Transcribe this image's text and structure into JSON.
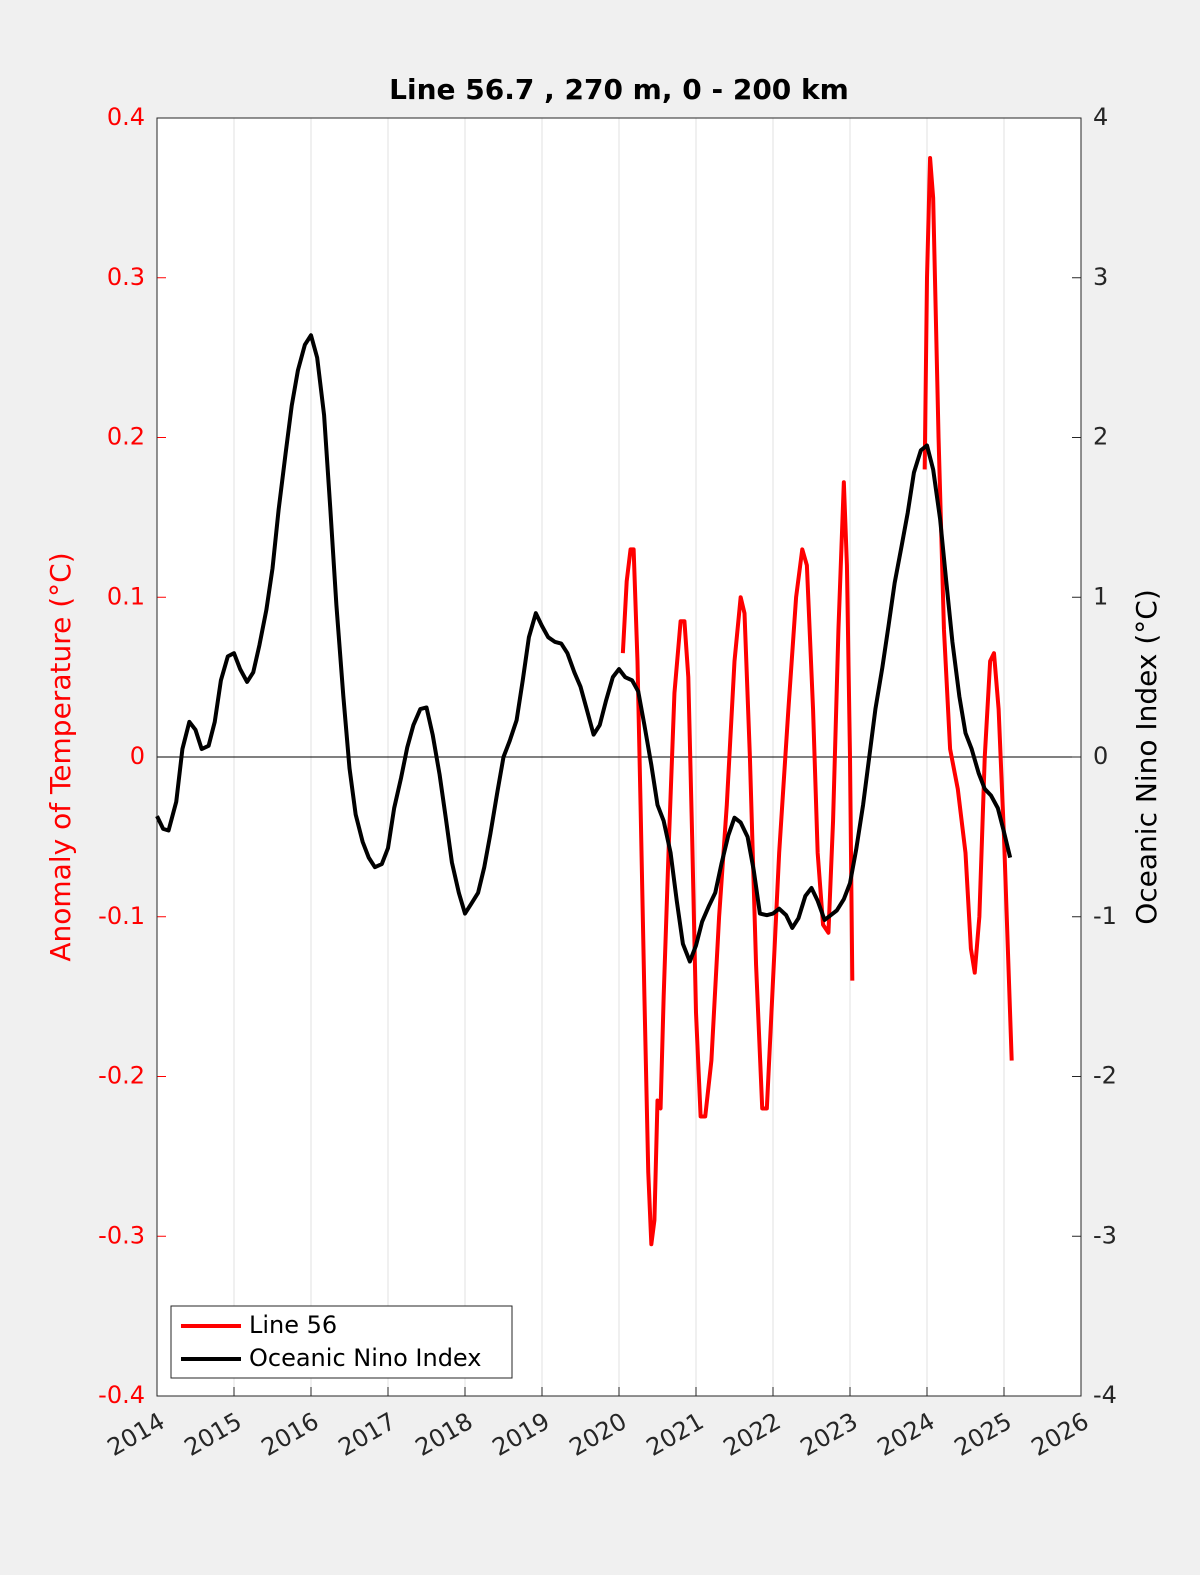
{
  "chart_data": {
    "type": "line",
    "title": "Line 56.7 , 270 m, 0 - 200 km",
    "ylabel": "Anomaly of Temperature (°C)",
    "y2label": "Oceanic Nino Index (°C)",
    "xlim": [
      2014,
      2026
    ],
    "xticks": [
      2014,
      2015,
      2016,
      2017,
      2018,
      2019,
      2020,
      2021,
      2022,
      2023,
      2024,
      2025,
      2026
    ],
    "ylim": [
      -0.4,
      0.4
    ],
    "yticks": [
      -0.4,
      -0.3,
      -0.2,
      -0.1,
      0,
      0.1,
      0.2,
      0.3,
      0.4
    ],
    "y2lim": [
      -4,
      4
    ],
    "y2ticks": [
      -4,
      -3,
      -2,
      -1,
      0,
      1,
      2,
      3,
      4
    ],
    "grid": "x",
    "legend": "lower left",
    "series": [
      {
        "name": "Line 56",
        "color": "#ff0000",
        "x": [
          2020.05,
          2020.1,
          2020.15,
          2020.19,
          2020.24,
          2020.28,
          2020.33,
          2020.38,
          2020.42,
          2020.46,
          2020.5,
          2020.54,
          2020.58,
          2020.65,
          2020.72,
          2020.8,
          2020.85,
          2020.9,
          2020.95,
          2021.0,
          2021.06,
          2021.12,
          2021.2,
          2021.3,
          2021.4,
          2021.5,
          2021.58,
          2021.63,
          2021.7,
          2021.78,
          2021.86,
          2021.92,
          2022.0,
          2022.08,
          2022.2,
          2022.3,
          2022.38,
          2022.44,
          2022.52,
          2022.58,
          2022.65,
          2022.72,
          2022.78,
          2022.85,
          2022.92,
          2022.96,
          2023.0,
          2023.03,
          2023.5,
          2023.97,
          2024.0,
          2024.04,
          2024.08,
          2024.15,
          2024.22,
          2024.3,
          2024.4,
          2024.5,
          2024.57,
          2024.62,
          2024.68,
          2024.75,
          2024.82,
          2024.87,
          2024.93,
          2025.0,
          2025.1
        ],
        "values": [
          0.065,
          0.11,
          0.13,
          0.13,
          0.06,
          -0.03,
          -0.15,
          -0.26,
          -0.305,
          -0.29,
          -0.215,
          -0.22,
          -0.15,
          -0.05,
          0.04,
          0.085,
          0.085,
          0.05,
          -0.05,
          -0.16,
          -0.225,
          -0.225,
          -0.19,
          -0.1,
          -0.03,
          0.06,
          0.1,
          0.09,
          0.0,
          -0.13,
          -0.22,
          -0.22,
          -0.14,
          -0.06,
          0.03,
          0.1,
          0.13,
          0.12,
          0.03,
          -0.06,
          -0.105,
          -0.11,
          -0.04,
          0.08,
          0.172,
          0.12,
          0.0,
          -0.14,
          null,
          0.18,
          0.3,
          0.375,
          0.35,
          0.2,
          0.08,
          0.005,
          -0.02,
          -0.06,
          -0.12,
          -0.135,
          -0.1,
          0.0,
          0.06,
          0.065,
          0.03,
          -0.05,
          -0.19
        ]
      },
      {
        "name": "Oceanic Nino Index",
        "color": "#000000",
        "axis": "y2",
        "x": [
          2014.0,
          2014.08,
          2014.15,
          2014.25,
          2014.33,
          2014.42,
          2014.5,
          2014.58,
          2014.67,
          2014.75,
          2014.83,
          2014.92,
          2015.0,
          2015.08,
          2015.17,
          2015.25,
          2015.33,
          2015.42,
          2015.5,
          2015.58,
          2015.67,
          2015.75,
          2015.83,
          2015.92,
          2016.0,
          2016.08,
          2016.17,
          2016.25,
          2016.33,
          2016.42,
          2016.5,
          2016.58,
          2016.67,
          2016.75,
          2016.83,
          2016.92,
          2017.0,
          2017.08,
          2017.17,
          2017.25,
          2017.33,
          2017.42,
          2017.5,
          2017.58,
          2017.67,
          2017.75,
          2017.83,
          2017.92,
          2018.0,
          2018.08,
          2018.17,
          2018.25,
          2018.33,
          2018.42,
          2018.5,
          2018.58,
          2018.67,
          2018.75,
          2018.83,
          2018.92,
          2019.0,
          2019.08,
          2019.17,
          2019.25,
          2019.33,
          2019.42,
          2019.5,
          2019.58,
          2019.67,
          2019.75,
          2019.83,
          2019.92,
          2020.0,
          2020.08,
          2020.17,
          2020.25,
          2020.33,
          2020.42,
          2020.5,
          2020.58,
          2020.67,
          2020.75,
          2020.83,
          2020.92,
          2021.0,
          2021.08,
          2021.17,
          2021.25,
          2021.33,
          2021.42,
          2021.5,
          2021.58,
          2021.67,
          2021.75,
          2021.83,
          2021.92,
          2022.0,
          2022.08,
          2022.17,
          2022.25,
          2022.33,
          2022.42,
          2022.5,
          2022.58,
          2022.67,
          2022.75,
          2022.83,
          2022.92,
          2023.0,
          2023.08,
          2023.17,
          2023.25,
          2023.33,
          2023.42,
          2023.5,
          2023.58,
          2023.67,
          2023.75,
          2023.83,
          2023.92,
          2024.0,
          2024.08,
          2024.17,
          2024.25,
          2024.33,
          2024.42,
          2024.5,
          2024.58,
          2024.67,
          2024.75,
          2024.83,
          2024.92,
          2025.0,
          2025.08
        ],
        "values": [
          -0.37,
          -0.45,
          -0.46,
          -0.28,
          0.05,
          0.22,
          0.17,
          0.05,
          0.07,
          0.22,
          0.48,
          0.63,
          0.65,
          0.55,
          0.47,
          0.53,
          0.7,
          0.92,
          1.18,
          1.55,
          1.9,
          2.2,
          2.42,
          2.58,
          2.64,
          2.5,
          2.14,
          1.56,
          0.95,
          0.38,
          -0.07,
          -0.36,
          -0.53,
          -0.63,
          -0.69,
          -0.67,
          -0.57,
          -0.32,
          -0.13,
          0.06,
          0.2,
          0.3,
          0.31,
          0.14,
          -0.11,
          -0.38,
          -0.66,
          -0.85,
          -0.98,
          -0.92,
          -0.85,
          -0.69,
          -0.48,
          -0.22,
          0.0,
          0.1,
          0.23,
          0.48,
          0.75,
          0.9,
          0.82,
          0.75,
          0.72,
          0.71,
          0.65,
          0.53,
          0.44,
          0.3,
          0.14,
          0.2,
          0.35,
          0.5,
          0.55,
          0.5,
          0.48,
          0.41,
          0.2,
          -0.05,
          -0.3,
          -0.4,
          -0.6,
          -0.9,
          -1.17,
          -1.28,
          -1.18,
          -1.03,
          -0.93,
          -0.85,
          -0.67,
          -0.49,
          -0.38,
          -0.41,
          -0.5,
          -0.71,
          -0.98,
          -0.99,
          -0.98,
          -0.95,
          -0.99,
          -1.07,
          -1.01,
          -0.87,
          -0.82,
          -0.9,
          -1.02,
          -0.99,
          -0.96,
          -0.89,
          -0.79,
          -0.58,
          -0.3,
          0.0,
          0.3,
          0.56,
          0.82,
          1.09,
          1.32,
          1.53,
          1.78,
          1.92,
          1.95,
          1.8,
          1.49,
          1.1,
          0.72,
          0.38,
          0.15,
          0.05,
          -0.1,
          -0.2,
          -0.24,
          -0.32,
          -0.47,
          -0.63
        ]
      }
    ]
  }
}
